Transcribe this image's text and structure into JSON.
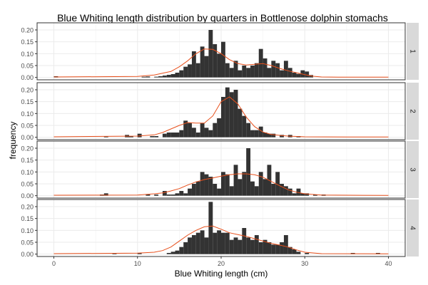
{
  "chart_data": {
    "type": "bar",
    "title": "Blue Whiting length distribution by quarters in Bottlenose dolphin stomachs",
    "xlabel": "Blue Whiting length (cm)",
    "ylabel": "frequency",
    "xlim": [
      -2,
      42
    ],
    "ylim": [
      -0.01,
      0.23
    ],
    "x_ticks": [
      "0",
      "10",
      "20",
      "30",
      "40"
    ],
    "y_ticks": [
      "0.00",
      "0.05",
      "0.10",
      "0.15",
      "0.20"
    ],
    "bin_width": 0.5,
    "colors": {
      "bars": "#333333",
      "density": "#e8501c",
      "strip": "#d9d9d9",
      "grid": "#ebebeb"
    },
    "panels": [
      {
        "label": "1",
        "bins": [
          [
            0,
            0.005
          ],
          [
            10.5,
            0.003
          ],
          [
            11,
            0.004
          ],
          [
            12,
            0.003
          ],
          [
            12.5,
            0.005
          ],
          [
            13,
            0.008
          ],
          [
            13.5,
            0.011
          ],
          [
            14,
            0.014
          ],
          [
            14.5,
            0.02
          ],
          [
            15,
            0.03
          ],
          [
            15.5,
            0.045
          ],
          [
            16,
            0.055
          ],
          [
            16.5,
            0.11
          ],
          [
            17,
            0.06
          ],
          [
            17.5,
            0.13
          ],
          [
            18,
            0.09
          ],
          [
            18.5,
            0.2
          ],
          [
            19,
            0.14
          ],
          [
            19.5,
            0.1
          ],
          [
            20,
            0.15
          ],
          [
            20.5,
            0.06
          ],
          [
            21,
            0.04
          ],
          [
            21.5,
            0.07
          ],
          [
            22,
            0.03
          ],
          [
            22.5,
            0.05
          ],
          [
            23,
            0.04
          ],
          [
            23.5,
            0.05
          ],
          [
            24,
            0.06
          ],
          [
            24.5,
            0.12
          ],
          [
            25,
            0.08
          ],
          [
            25.5,
            0.04
          ],
          [
            26,
            0.07
          ],
          [
            26.5,
            0.06
          ],
          [
            27,
            0.03
          ],
          [
            27.5,
            0.07
          ],
          [
            28,
            0.04
          ],
          [
            28.5,
            0.02
          ],
          [
            29,
            0.015
          ],
          [
            29.5,
            0.03
          ],
          [
            30,
            0.025
          ],
          [
            30.5,
            0.01
          ]
        ],
        "density": [
          [
            0,
            0.002
          ],
          [
            10,
            0.004
          ],
          [
            12,
            0.01
          ],
          [
            14,
            0.025
          ],
          [
            15,
            0.045
          ],
          [
            16,
            0.07
          ],
          [
            17,
            0.1
          ],
          [
            18,
            0.12
          ],
          [
            19,
            0.118
          ],
          [
            20,
            0.1
          ],
          [
            21,
            0.075
          ],
          [
            22,
            0.058
          ],
          [
            23,
            0.052
          ],
          [
            24,
            0.055
          ],
          [
            25,
            0.058
          ],
          [
            26,
            0.05
          ],
          [
            27,
            0.038
          ],
          [
            28,
            0.028
          ],
          [
            29,
            0.02
          ],
          [
            30,
            0.012
          ],
          [
            31,
            0.005
          ],
          [
            32,
            0.002
          ],
          [
            34,
            0.001
          ],
          [
            40,
            0.001
          ]
        ]
      },
      {
        "label": "2",
        "bins": [
          [
            6,
            0.003
          ],
          [
            8.5,
            0.01
          ],
          [
            9,
            0.005
          ],
          [
            10,
            0.015
          ],
          [
            11.5,
            0.005
          ],
          [
            12,
            0.005
          ],
          [
            13,
            0.015
          ],
          [
            13.5,
            0.02
          ],
          [
            14,
            0.02
          ],
          [
            14.5,
            0.02
          ],
          [
            15,
            0.03
          ],
          [
            15.5,
            0.07
          ],
          [
            16,
            0.06
          ],
          [
            16.5,
            0.04
          ],
          [
            17,
            0.02
          ],
          [
            17.5,
            0.06
          ],
          [
            18,
            0.04
          ],
          [
            18.5,
            0.03
          ],
          [
            19,
            0.06
          ],
          [
            19.5,
            0.08
          ],
          [
            20,
            0.17
          ],
          [
            20.5,
            0.21
          ],
          [
            21,
            0.19
          ],
          [
            21.5,
            0.2
          ],
          [
            22,
            0.12
          ],
          [
            22.5,
            0.09
          ],
          [
            23,
            0.06
          ],
          [
            23.5,
            0.03
          ],
          [
            24,
            0.03
          ],
          [
            24.5,
            0.045
          ],
          [
            25,
            0.02
          ],
          [
            25.5,
            0.015
          ],
          [
            26,
            0.015
          ],
          [
            27,
            0.01
          ],
          [
            28,
            0.01
          ],
          [
            29,
            0.005
          ]
        ],
        "density": [
          [
            0,
            0.002
          ],
          [
            10,
            0.005
          ],
          [
            12,
            0.01
          ],
          [
            13,
            0.02
          ],
          [
            14,
            0.035
          ],
          [
            15,
            0.05
          ],
          [
            16,
            0.062
          ],
          [
            17,
            0.06
          ],
          [
            18,
            0.06
          ],
          [
            19,
            0.09
          ],
          [
            20,
            0.15
          ],
          [
            21,
            0.17
          ],
          [
            22,
            0.14
          ],
          [
            23,
            0.085
          ],
          [
            24,
            0.045
          ],
          [
            25,
            0.022
          ],
          [
            26,
            0.012
          ],
          [
            27,
            0.008
          ],
          [
            28,
            0.005
          ],
          [
            30,
            0.002
          ],
          [
            35,
            0.001
          ],
          [
            40,
            0.001
          ]
        ]
      },
      {
        "label": "3",
        "bins": [
          [
            5.5,
            0.005
          ],
          [
            6,
            0.01
          ],
          [
            11,
            0.005
          ],
          [
            12,
            0.005
          ],
          [
            13,
            0.02
          ],
          [
            13.5,
            0.005
          ],
          [
            14,
            0.005
          ],
          [
            14.5,
            0.01
          ],
          [
            15,
            0.02
          ],
          [
            15.5,
            0.01
          ],
          [
            16,
            0.03
          ],
          [
            16.5,
            0.05
          ],
          [
            17,
            0.06
          ],
          [
            17.5,
            0.1
          ],
          [
            18,
            0.09
          ],
          [
            18.5,
            0.08
          ],
          [
            19,
            0.05
          ],
          [
            19.5,
            0.03
          ],
          [
            20,
            0.1
          ],
          [
            20.5,
            0.09
          ],
          [
            21,
            0.04
          ],
          [
            21.5,
            0.13
          ],
          [
            22,
            0.07
          ],
          [
            22.5,
            0.1
          ],
          [
            23,
            0.2
          ],
          [
            23.5,
            0.06
          ],
          [
            24,
            0.04
          ],
          [
            24.5,
            0.1
          ],
          [
            25,
            0.07
          ],
          [
            25.5,
            0.13
          ],
          [
            26,
            0.05
          ],
          [
            26.5,
            0.1
          ],
          [
            27,
            0.05
          ],
          [
            27.5,
            0.04
          ],
          [
            28,
            0.03
          ],
          [
            28.5,
            0.01
          ],
          [
            29,
            0.03
          ],
          [
            29.5,
            0.01
          ],
          [
            30,
            0.01
          ],
          [
            31,
            0.005
          ],
          [
            32,
            0.005
          ]
        ],
        "density": [
          [
            0,
            0.002
          ],
          [
            10,
            0.003
          ],
          [
            12,
            0.008
          ],
          [
            13,
            0.012
          ],
          [
            14,
            0.02
          ],
          [
            15,
            0.03
          ],
          [
            16,
            0.045
          ],
          [
            17,
            0.058
          ],
          [
            18,
            0.068
          ],
          [
            19,
            0.075
          ],
          [
            20,
            0.082
          ],
          [
            21,
            0.088
          ],
          [
            22,
            0.092
          ],
          [
            23,
            0.092
          ],
          [
            24,
            0.088
          ],
          [
            25,
            0.078
          ],
          [
            26,
            0.06
          ],
          [
            27,
            0.042
          ],
          [
            28,
            0.025
          ],
          [
            29,
            0.015
          ],
          [
            30,
            0.008
          ],
          [
            32,
            0.003
          ],
          [
            40,
            0.001
          ]
        ]
      },
      {
        "label": "4",
        "bins": [
          [
            7,
            0.005
          ],
          [
            10,
            0.005
          ],
          [
            13.5,
            0.005
          ],
          [
            14,
            0.01
          ],
          [
            14.5,
            0.015
          ],
          [
            15,
            0.03
          ],
          [
            15.5,
            0.05
          ],
          [
            16,
            0.07
          ],
          [
            16.5,
            0.08
          ],
          [
            17,
            0.09
          ],
          [
            17.5,
            0.1
          ],
          [
            18,
            0.07
          ],
          [
            18.5,
            0.22
          ],
          [
            19,
            0.09
          ],
          [
            19.5,
            0.1
          ],
          [
            20,
            0.09
          ],
          [
            20.5,
            0.09
          ],
          [
            21,
            0.06
          ],
          [
            21.5,
            0.07
          ],
          [
            22,
            0.06
          ],
          [
            22.5,
            0.11
          ],
          [
            23,
            0.07
          ],
          [
            23.5,
            0.06
          ],
          [
            24,
            0.08
          ],
          [
            24.5,
            0.05
          ],
          [
            25,
            0.06
          ],
          [
            25.5,
            0.05
          ],
          [
            26,
            0.04
          ],
          [
            26.5,
            0.04
          ],
          [
            27,
            0.05
          ],
          [
            27.5,
            0.08
          ],
          [
            28,
            0.03
          ],
          [
            28.5,
            0.02
          ],
          [
            29,
            0.01
          ],
          [
            30,
            0.005
          ],
          [
            35.5,
            0.005
          ],
          [
            38.5,
            0.005
          ]
        ],
        "density": [
          [
            0,
            0.002
          ],
          [
            10,
            0.004
          ],
          [
            12,
            0.008
          ],
          [
            13,
            0.015
          ],
          [
            14,
            0.03
          ],
          [
            15,
            0.055
          ],
          [
            16,
            0.08
          ],
          [
            17,
            0.1
          ],
          [
            18,
            0.115
          ],
          [
            19,
            0.118
          ],
          [
            20,
            0.105
          ],
          [
            21,
            0.09
          ],
          [
            22,
            0.082
          ],
          [
            23,
            0.075
          ],
          [
            24,
            0.065
          ],
          [
            25,
            0.055
          ],
          [
            26,
            0.045
          ],
          [
            27,
            0.038
          ],
          [
            28,
            0.03
          ],
          [
            29,
            0.018
          ],
          [
            30,
            0.008
          ],
          [
            32,
            0.002
          ],
          [
            40,
            0.001
          ]
        ]
      }
    ]
  }
}
